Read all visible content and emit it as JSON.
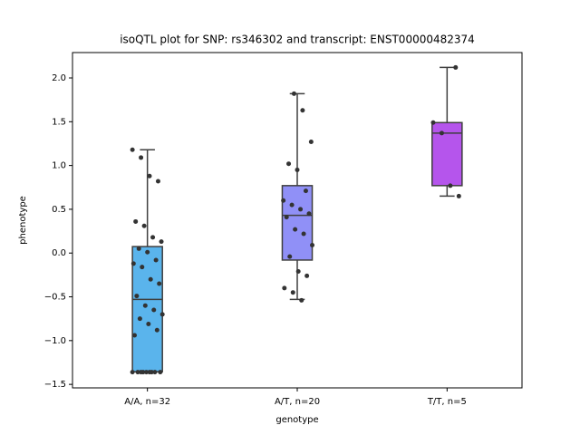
{
  "chart_data": {
    "type": "box",
    "title": "isoQTL plot for SNP: rs346302 and transcript: ENST00000482374",
    "x_label": "genotype",
    "y_label": "phenotype",
    "categories": [
      "A/A, n=32",
      "A/T, n=20",
      "T/T, n=5"
    ],
    "colors": [
      "#5ab4ec",
      "#9090f7",
      "#b555ec"
    ],
    "boxes": [
      {
        "min": -1.36,
        "q1": -1.355,
        "median": -0.53,
        "q3": 0.074,
        "max": 1.18
      },
      {
        "min": -0.53,
        "q1": -0.08,
        "median": 0.43,
        "q3": 0.77,
        "max": 1.82
      },
      {
        "min": 0.65,
        "q1": 0.77,
        "median": 1.37,
        "q3": 1.49,
        "max": 2.12
      }
    ],
    "points": [
      [
        1.18,
        1.09,
        0.88,
        0.82,
        0.36,
        0.31,
        0.18,
        0.13,
        0.05,
        0.01,
        -0.08,
        -0.12,
        -0.16,
        -0.3,
        -0.35,
        -0.49,
        -0.6,
        -0.65,
        -0.7,
        -0.75,
        -0.81,
        -0.88,
        -0.94,
        -1.36,
        -1.36,
        -1.36,
        -1.36,
        -1.36,
        -1.36,
        -1.36,
        -1.36,
        -1.36
      ],
      [
        1.82,
        1.63,
        1.27,
        1.02,
        0.95,
        0.71,
        0.6,
        0.55,
        0.5,
        0.45,
        0.41,
        0.27,
        0.22,
        0.09,
        -0.04,
        -0.21,
        -0.26,
        -0.4,
        -0.45,
        -0.54
      ],
      [
        2.12,
        1.49,
        1.37,
        0.77,
        0.65
      ]
    ],
    "point_color": "#333333",
    "ylim": [
      -1.54,
      2.29
    ],
    "yticks": [
      {
        "value": -1.5,
        "label": "−1.5"
      },
      {
        "value": -1.0,
        "label": "−1.0"
      },
      {
        "value": -0.5,
        "label": "−0.5"
      },
      {
        "value": 0.0,
        "label": "0.0"
      },
      {
        "value": 0.5,
        "label": "0.5"
      },
      {
        "value": 1.0,
        "label": "1.0"
      },
      {
        "value": 1.5,
        "label": "1.5"
      },
      {
        "value": 2.0,
        "label": "2.0"
      }
    ]
  }
}
